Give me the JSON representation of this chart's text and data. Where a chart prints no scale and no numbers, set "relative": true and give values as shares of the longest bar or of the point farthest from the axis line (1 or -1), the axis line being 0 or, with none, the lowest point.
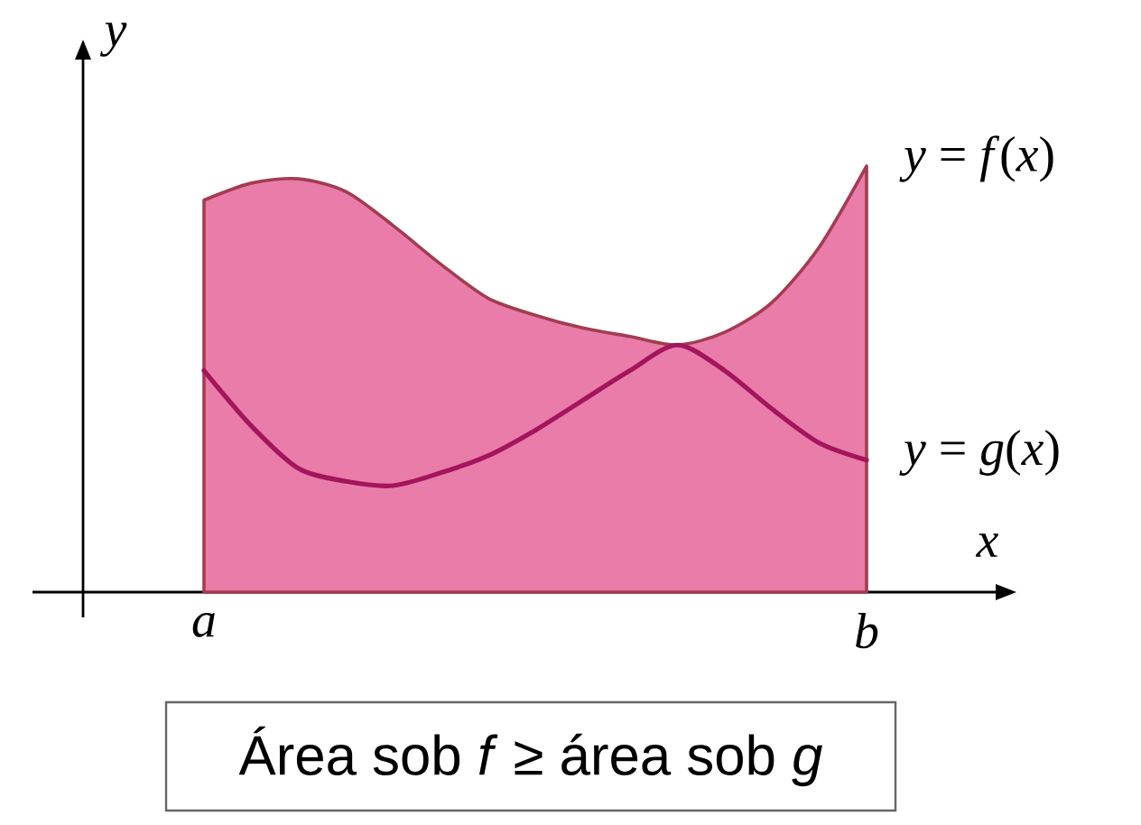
{
  "chart_data": {
    "type": "area",
    "relative": true,
    "xlabel": "x",
    "ylabel": "y",
    "categories": [
      "a",
      null,
      null,
      null,
      null,
      null,
      null,
      null,
      null,
      null,
      null,
      null,
      null,
      null,
      "b"
    ],
    "series": [
      {
        "name": "*y* = *f*(*x*)",
        "color": "#ea7ca9",
        "values": [
          0.92,
          0.96,
          0.97,
          0.94,
          0.86,
          0.77,
          0.69,
          0.65,
          0.62,
          0.6,
          0.58,
          0.61,
          0.68,
          0.81,
          1
        ]
      },
      {
        "name": "*y* = *g*(*x*)",
        "type": "line",
        "color": "#a3155c",
        "values": [
          0.52,
          0.39,
          0.29,
          0.26,
          0.25,
          0.28,
          0.32,
          0.38,
          0.45,
          0.52,
          0.58,
          0.52,
          0.43,
          0.35,
          0.31
        ]
      }
    ],
    "annotations": [
      "Área sob *f* ≥ área sob *g*"
    ]
  }
}
